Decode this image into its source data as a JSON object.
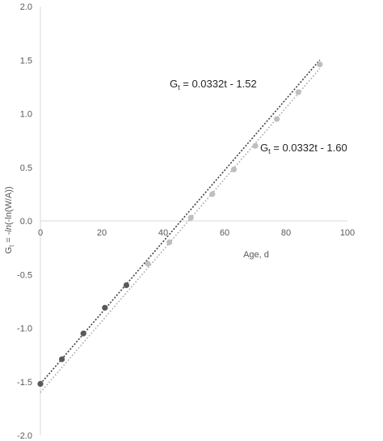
{
  "chart_data": {
    "type": "scatter",
    "title": "",
    "xlabel": "Age, d",
    "ylabel_parts": {
      "main": "G",
      "sub": "t",
      "rest": " = -",
      "italic": "ln",
      "tail": "(-ln(W/A))"
    },
    "xlim": [
      0,
      100
    ],
    "ylim": [
      -2.0,
      2.0
    ],
    "grid": false,
    "legend": "none",
    "x_ticks": [
      "0",
      "20",
      "40",
      "60",
      "80",
      "100"
    ],
    "y_ticks": [
      "2.0",
      "1.5",
      "1.0",
      "0.5",
      "0.0",
      "-0.5",
      "-1.0",
      "-1.5",
      "-2.0"
    ],
    "series": [
      {
        "color": "#595959",
        "x": [
          0,
          7,
          14,
          21,
          28
        ],
        "y": [
          -1.52,
          -1.29,
          -1.05,
          -0.81,
          -0.6
        ]
      },
      {
        "color": "#bfbfbf",
        "x": [
          35,
          42,
          49,
          56,
          63,
          70,
          77,
          84,
          91
        ],
        "y": [
          -0.4,
          -0.2,
          0.03,
          0.25,
          0.48,
          0.7,
          0.95,
          1.2,
          1.46
        ]
      }
    ],
    "trendlines": [
      {
        "slope": 0.0332,
        "intercept": -1.52,
        "x_range": [
          0,
          91
        ],
        "color": "#404040",
        "dash": "dark-dotted",
        "eq_main": "G",
        "eq_sub": "t",
        "eq_rest": " = 0.0332t - 1.52"
      },
      {
        "slope": 0.0332,
        "intercept": -1.6,
        "x_range": [
          0,
          91
        ],
        "color": "#a6a6a6",
        "dash": "light-dotted",
        "eq_main": "G",
        "eq_sub": "t",
        "eq_rest": " = 0.0332t - 1.60"
      }
    ]
  }
}
